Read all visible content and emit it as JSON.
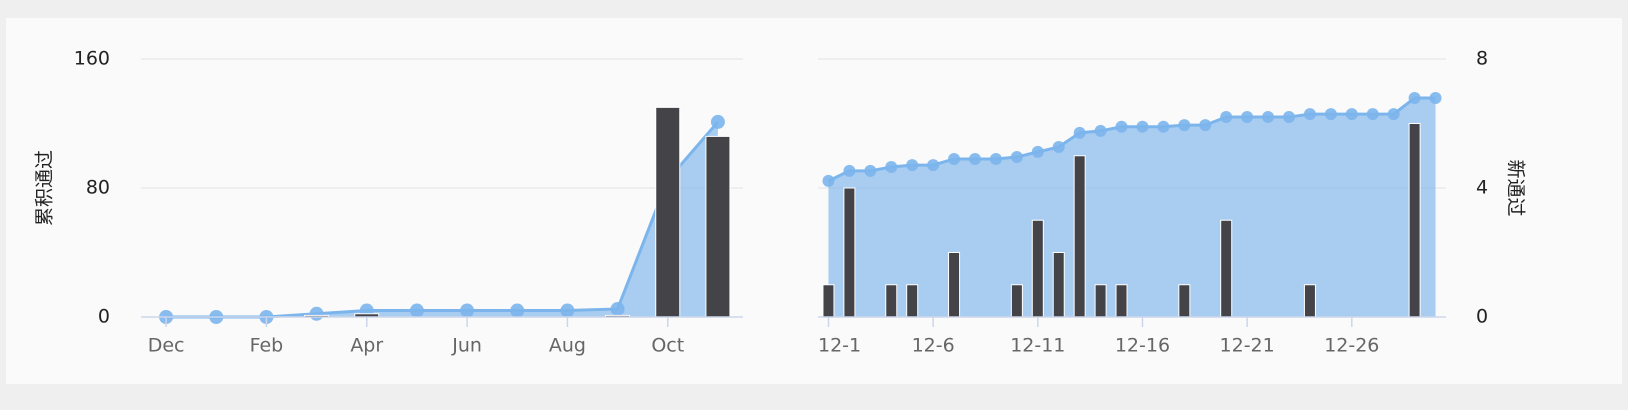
{
  "chart_data": [
    {
      "type": "combo",
      "y_label": "累积通过",
      "categories": [
        "Dec",
        null,
        "Feb",
        null,
        "Apr",
        null,
        "Jun",
        null,
        "Aug",
        null,
        "Oct",
        null
      ],
      "ylim": [
        0,
        160
      ],
      "yticks": [
        0,
        80,
        160
      ],
      "grid": true,
      "series": [
        {
          "type": "area",
          "color": "#7cb5ec",
          "values": [
            0,
            0,
            0,
            2,
            4,
            4,
            4,
            4,
            4,
            5,
            85,
            121
          ]
        },
        {
          "type": "bar",
          "color": "#434348",
          "values": [
            0,
            0,
            0,
            1,
            2,
            0,
            0,
            0,
            0,
            1,
            130,
            112
          ]
        }
      ]
    },
    {
      "type": "combo",
      "y2_label": "新通过",
      "categories": [
        "12-1",
        null,
        null,
        null,
        null,
        "12-6",
        null,
        null,
        null,
        null,
        "12-11",
        null,
        null,
        null,
        null,
        "12-16",
        null,
        null,
        null,
        null,
        "12-21",
        null,
        null,
        null,
        null,
        "12-26",
        null,
        null,
        null,
        null
      ],
      "y2lim": [
        0,
        8
      ],
      "y2ticks": [
        0,
        4,
        8
      ],
      "grid": true,
      "series": [
        {
          "type": "area",
          "axis": "y2",
          "color": "#7cb5ec",
          "values": [
            4.22,
            4.53,
            4.53,
            4.65,
            4.71,
            4.71,
            4.9,
            4.9,
            4.9,
            4.96,
            5.12,
            5.27,
            5.71,
            5.77,
            5.9,
            5.9,
            5.9,
            5.95,
            5.95,
            6.2,
            6.2,
            6.2,
            6.2,
            6.29,
            6.29,
            6.29,
            6.29,
            6.29,
            6.79,
            6.79
          ]
        },
        {
          "type": "bar",
          "axis": "y2",
          "color": "#434348",
          "values": [
            1,
            4,
            0,
            1,
            1,
            0,
            2,
            0,
            0,
            1,
            3,
            2,
            5,
            1,
            1,
            0,
            0,
            1,
            0,
            3,
            0,
            0,
            0,
            1,
            0,
            0,
            0,
            0,
            6,
            0
          ]
        }
      ]
    }
  ]
}
